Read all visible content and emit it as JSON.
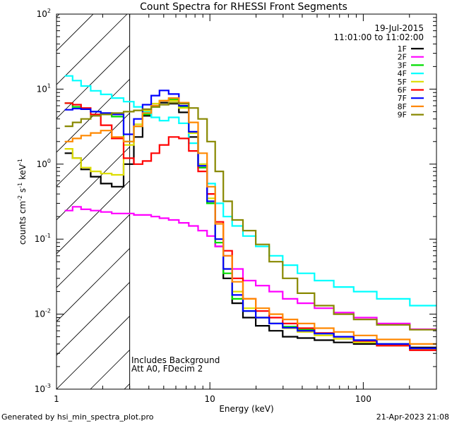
{
  "chart_data": {
    "type": "line",
    "title": "Count Spectra for RHESSI Front Segments",
    "xlabel": "Energy (keV)",
    "ylabel_parts": {
      "base": "counts cm",
      "exp1": "-2",
      "mid1": " s",
      "exp2": "-1",
      "mid2": " keV",
      "exp3": "-1"
    },
    "xscale": "log",
    "yscale": "log",
    "xlim": [
      1.0,
      300
    ],
    "ylim": [
      0.001,
      100
    ],
    "x_ticks": [
      {
        "value": 10,
        "label": "10"
      },
      {
        "value": 100,
        "label": "100"
      }
    ],
    "y_ticks": [
      {
        "value": 0.001,
        "base": "10",
        "exp": "-3"
      },
      {
        "value": 0.01,
        "base": "10",
        "exp": "-2"
      },
      {
        "value": 0.1,
        "base": "10",
        "exp": "-1"
      },
      {
        "value": 1,
        "base": "10",
        "exp": "0"
      },
      {
        "value": 10,
        "base": "10",
        "exp": "1"
      },
      {
        "value": 100,
        "base": "10",
        "exp": "2"
      }
    ],
    "extra_x_labels": [
      {
        "value": 1.0,
        "label": "1"
      }
    ],
    "excluded_region": {
      "from": 1.0,
      "to": 3.0
    },
    "date": "19-Jul-2015",
    "time_range": "11:01:00 to 11:02:00",
    "legend_position": "top-right",
    "series": [
      {
        "name": "1F",
        "color": "#000000",
        "values": [
          1.4,
          1.2,
          0.85,
          0.68,
          0.55,
          0.5,
          1.0,
          2.3,
          4.4,
          6.0,
          6.6,
          6.4,
          4.9,
          2.3,
          0.9,
          0.3,
          0.08,
          0.03,
          0.014,
          0.009,
          0.007,
          0.006,
          0.005,
          0.0048,
          0.0045,
          0.0042,
          0.004,
          0.0038,
          0.0036
        ]
      },
      {
        "name": "2F",
        "color": "#ff00ff",
        "values": [
          0.24,
          0.27,
          0.25,
          0.24,
          0.23,
          0.22,
          0.22,
          0.21,
          0.21,
          0.2,
          0.19,
          0.18,
          0.165,
          0.15,
          0.13,
          0.11,
          0.08,
          0.06,
          0.04,
          0.028,
          0.024,
          0.02,
          0.016,
          0.014,
          0.012,
          0.0105,
          0.009,
          0.0075,
          0.0063
        ]
      },
      {
        "name": "3F",
        "color": "#00dd00",
        "values": [
          6.5,
          5.8,
          5.4,
          5.0,
          4.6,
          4.3,
          2.0,
          3.2,
          4.6,
          5.8,
          7.0,
          7.3,
          5.8,
          2.6,
          0.9,
          0.3,
          0.09,
          0.035,
          0.016,
          0.011,
          0.009,
          0.0075,
          0.0068,
          0.0062,
          0.0055,
          0.005,
          0.0045,
          0.004,
          0.0035
        ]
      },
      {
        "name": "4F",
        "color": "#00ffff",
        "values": [
          15.0,
          13.0,
          11.0,
          9.5,
          8.5,
          7.6,
          6.8,
          5.8,
          5.0,
          4.2,
          3.8,
          4.2,
          3.5,
          1.9,
          1.0,
          0.55,
          0.3,
          0.2,
          0.15,
          0.11,
          0.08,
          0.06,
          0.045,
          0.035,
          0.028,
          0.023,
          0.02,
          0.016,
          0.013
        ]
      },
      {
        "name": "5F",
        "color": "#dddd00",
        "values": [
          1.6,
          1.2,
          0.9,
          0.8,
          0.75,
          0.72,
          1.8,
          3.4,
          5.2,
          6.4,
          7.0,
          7.0,
          5.6,
          2.6,
          1.0,
          0.35,
          0.1,
          0.04,
          0.02,
          0.012,
          0.009,
          0.0075,
          0.0065,
          0.0058,
          0.0052,
          0.0047,
          0.0042,
          0.0038,
          0.0034
        ]
      },
      {
        "name": "6F",
        "color": "#ff0000",
        "values": [
          6.5,
          6.2,
          5.6,
          4.6,
          3.3,
          2.2,
          1.2,
          1.0,
          1.1,
          1.4,
          1.8,
          2.3,
          2.2,
          1.5,
          0.8,
          0.4,
          0.17,
          0.07,
          0.03,
          0.016,
          0.011,
          0.009,
          0.0075,
          0.0065,
          0.0056,
          0.005,
          0.0044,
          0.0038,
          0.0033
        ]
      },
      {
        "name": "7F",
        "color": "#0000ff",
        "values": [
          5.3,
          5.5,
          5.4,
          5.0,
          4.8,
          4.6,
          2.5,
          4.0,
          6.2,
          8.2,
          9.6,
          8.6,
          6.0,
          2.7,
          0.95,
          0.32,
          0.1,
          0.04,
          0.018,
          0.011,
          0.009,
          0.0075,
          0.0066,
          0.006,
          0.0055,
          0.005,
          0.0045,
          0.004,
          0.0035
        ]
      },
      {
        "name": "8F",
        "color": "#ff8800",
        "values": [
          2.0,
          2.2,
          2.4,
          2.6,
          2.8,
          2.3,
          2.0,
          3.2,
          4.8,
          6.0,
          7.0,
          7.6,
          6.6,
          3.6,
          1.4,
          0.5,
          0.16,
          0.06,
          0.027,
          0.016,
          0.012,
          0.01,
          0.0085,
          0.0075,
          0.0065,
          0.0058,
          0.0052,
          0.0046,
          0.004
        ]
      },
      {
        "name": "9F",
        "color": "#888800",
        "values": [
          3.2,
          3.6,
          4.0,
          4.4,
          4.6,
          4.8,
          5.0,
          5.2,
          5.4,
          5.8,
          6.2,
          6.6,
          6.4,
          5.6,
          4.0,
          2.0,
          0.8,
          0.32,
          0.18,
          0.13,
          0.085,
          0.05,
          0.03,
          0.019,
          0.013,
          0.01,
          0.0085,
          0.0072,
          0.0062
        ]
      }
    ],
    "x_points": [
      1.2,
      1.35,
      1.55,
      1.8,
      2.1,
      2.5,
      3.0,
      3.4,
      3.9,
      4.4,
      5.0,
      5.8,
      6.8,
      7.8,
      9.0,
      10.2,
      11.5,
      13.0,
      15.0,
      18.0,
      22.0,
      27.0,
      33.0,
      42.0,
      55.0,
      75.0,
      100.0,
      150.0,
      270.0
    ],
    "annotations": [
      "Includes Background",
      "Att A0, FDecim 2"
    ]
  },
  "footer": {
    "left": "Generated by hsi_min_spectra_plot.pro",
    "right": "21-Apr-2023 21:08"
  }
}
